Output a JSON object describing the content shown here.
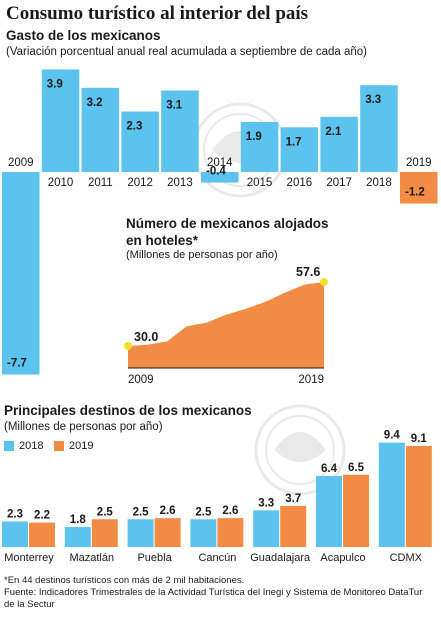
{
  "title": "Consumo turístico al interior del país",
  "gasto": {
    "title": "Gasto de los mexicanos",
    "subtitle": "(Variación porcentual anual real acumulada a septiembre de cada año)"
  },
  "hoteles": {
    "title": "Número de mexicanos alojados en hoteles*",
    "subtitle": "(Millones de personas por año)"
  },
  "destinos": {
    "title": "Principales destinos de los mexicanos",
    "subtitle": "(Millones de personas por año)"
  },
  "footnote": {
    "line1": "*En 44 destinos turísticos con más de 2 mil habitaciones.",
    "line2": "Fuente: Indicadores Trimestrales de la Actividad Turística del Inegi y Sistema de Monitoreo DataTur de la Sectur"
  },
  "colors": {
    "blue": "#5cc2ee",
    "orange": "#f28c45",
    "dot": "#f2e02a",
    "text": "#1a1a1a"
  },
  "chart_data": [
    {
      "type": "bar",
      "title": "Gasto de los mexicanos",
      "categories": [
        "2009",
        "2010",
        "2011",
        "2012",
        "2013",
        "2014",
        "2015",
        "2016",
        "2017",
        "2018",
        "2019"
      ],
      "values": [
        -7.7,
        3.9,
        3.2,
        2.3,
        3.1,
        -0.4,
        1.9,
        1.7,
        2.1,
        3.3,
        -1.2
      ],
      "value_labels": [
        "-7.7",
        "3.9",
        "3.2",
        "2.3",
        "3.1",
        "-0.4",
        "1.9",
        "1.7",
        "2.1",
        "3.3",
        "-1.2"
      ],
      "ylim": [
        -8,
        4
      ],
      "grid": false
    },
    {
      "type": "area",
      "title": "Número de mexicanos alojados en hoteles*",
      "x": [
        2009,
        2010,
        2011,
        2012,
        2013,
        2014,
        2015,
        2016,
        2017,
        2018,
        2019
      ],
      "values": [
        30.0,
        30.5,
        32.0,
        38.5,
        40.0,
        43.5,
        46.0,
        49.0,
        53.0,
        56.5,
        57.6
      ],
      "x_tick_labels": [
        "2009",
        "2019"
      ],
      "start_label": "30.0",
      "end_label": "57.6",
      "ylim": [
        20,
        60
      ],
      "grid": false
    },
    {
      "type": "bar",
      "title": "Principales destinos de los mexicanos",
      "categories": [
        "Monterrey",
        "Mazatlán",
        "Puebla",
        "Cancún",
        "Guadalajara",
        "Acapulco",
        "CDMX"
      ],
      "series": [
        {
          "name": "2018",
          "values": [
            2.3,
            1.8,
            2.5,
            2.5,
            3.3,
            6.4,
            9.4
          ],
          "labels": [
            "2.3",
            "1.8",
            "2.5",
            "2.5",
            "3.3",
            "6.4",
            "9.4"
          ]
        },
        {
          "name": "2019",
          "values": [
            2.2,
            2.5,
            2.6,
            2.6,
            3.7,
            6.5,
            9.1
          ],
          "labels": [
            "2.2",
            "2.5",
            "2.6",
            "2.6",
            "3.7",
            "6.5",
            "9.1"
          ]
        }
      ],
      "legend": "top-left",
      "grid": false
    }
  ]
}
